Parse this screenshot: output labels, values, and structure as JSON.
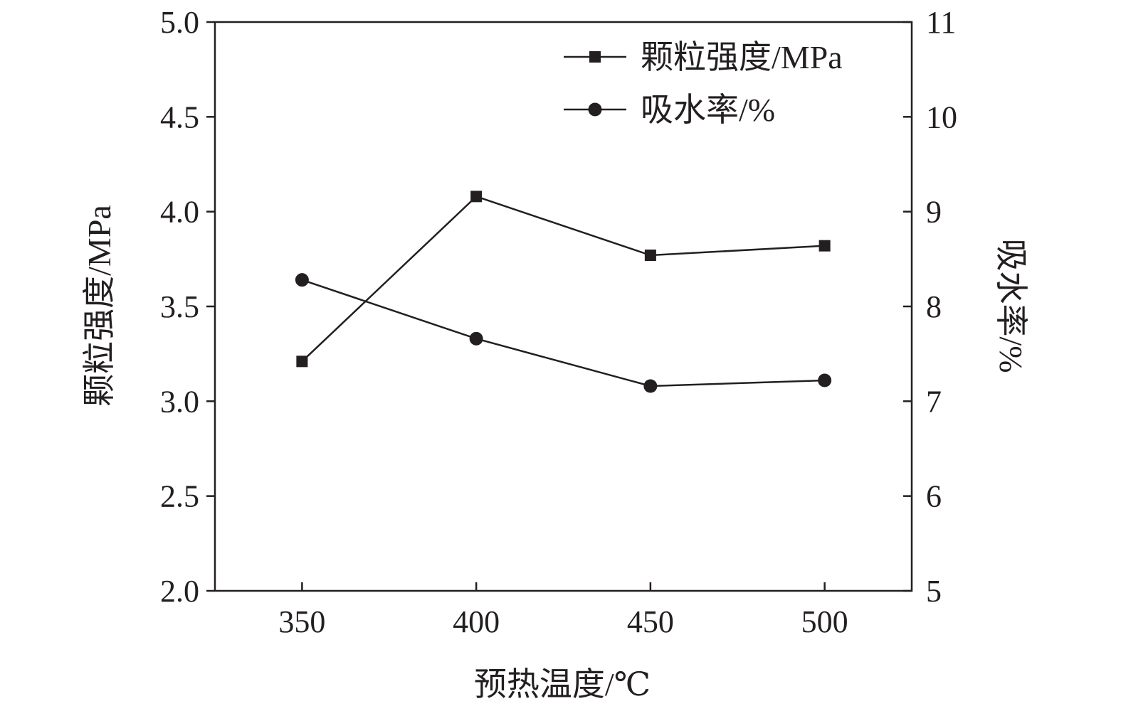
{
  "chart_data": {
    "type": "line",
    "xlabel": "预热温度/℃",
    "ylabel_left": "颗粒强度/MPa",
    "ylabel_right": "吸水率/%",
    "x": [
      350,
      400,
      450,
      500
    ],
    "x_tick_labels": [
      "350",
      "400",
      "450",
      "500"
    ],
    "xlim": [
      325,
      525
    ],
    "ylim_left": [
      2.0,
      5.0
    ],
    "y_left_tick_labels": [
      "2.0",
      "2.5",
      "3.0",
      "3.5",
      "4.0",
      "4.5",
      "5.0"
    ],
    "ylim_right": [
      5,
      11
    ],
    "y_right_tick_labels": [
      "5",
      "6",
      "7",
      "8",
      "9",
      "10",
      "11"
    ],
    "grid": false,
    "legend_position": "top-right",
    "series": [
      {
        "name": "颗粒强度/MPa",
        "axis": "left",
        "marker": "square",
        "values": [
          3.21,
          4.08,
          3.77,
          3.82
        ]
      },
      {
        "name": "吸水率/%",
        "axis": "right",
        "marker": "circle",
        "values": [
          8.28,
          7.66,
          7.16,
          7.22
        ]
      }
    ],
    "colors": {
      "ink": "#231f20"
    }
  }
}
